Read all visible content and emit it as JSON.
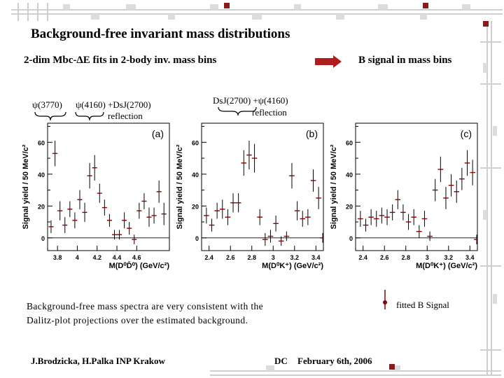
{
  "slide": {
    "title": "Background-free invariant mass distributions",
    "subtitle_left": "2-dim Mbc-ΔE fits in 2-body inv. mass bins",
    "subtitle_right": "B signal in mass bins",
    "annotations": {
      "psi3770": "ψ(3770)",
      "psi4160_dsj": "ψ(4160) +DsJ(2700)",
      "reflection_a": "reflection",
      "dsj_psi": "DsJ(2700) +ψ(4160)",
      "reflection_b": "reflection"
    },
    "caption": "Background-free mass spectra are very consistent with the Dalitz-plot projections over the estimated background.",
    "legend_label": "fitted B Signal",
    "footer_left": "J.Brodzicka, H.Palka INP Krakow",
    "footer_dc": "DC",
    "footer_date": "February 6th, 2006",
    "colors": {
      "arrow": "#b01c1c",
      "points": "#8b0000",
      "decor": "#d0d0d0"
    }
  },
  "chart_data": [
    {
      "type": "scatter",
      "panel_label": "(a)",
      "ylabel": "Signal yield / 50 MeV/c²",
      "xlabel": "M(D⁰D̄⁰) (GeV/c²)",
      "xlim": [
        3.7,
        4.93
      ],
      "ylim": [
        -8,
        72
      ],
      "xticks": [
        "3.8",
        "4",
        "4.2",
        "4.4",
        "4.6"
      ],
      "xtick_values": [
        3.8,
        4.0,
        4.2,
        4.4,
        4.6
      ],
      "yticks": [
        "0",
        "20",
        "40",
        "60"
      ],
      "ytick_values": [
        0,
        20,
        40,
        60
      ],
      "points": [
        {
          "x": 3.735,
          "y": 7,
          "err": 4
        },
        {
          "x": 3.775,
          "y": 53,
          "err": 8
        },
        {
          "x": 3.825,
          "y": 17,
          "err": 6
        },
        {
          "x": 3.875,
          "y": 8,
          "err": 5
        },
        {
          "x": 3.925,
          "y": 18,
          "err": 5
        },
        {
          "x": 3.975,
          "y": 11,
          "err": 5
        },
        {
          "x": 4.025,
          "y": 24,
          "err": 6
        },
        {
          "x": 4.075,
          "y": 16,
          "err": 6
        },
        {
          "x": 4.125,
          "y": 39,
          "err": 8
        },
        {
          "x": 4.175,
          "y": 44,
          "err": 8
        },
        {
          "x": 4.225,
          "y": 28,
          "err": 6
        },
        {
          "x": 4.275,
          "y": 19,
          "err": 5
        },
        {
          "x": 4.325,
          "y": 11,
          "err": 4
        },
        {
          "x": 4.375,
          "y": 2,
          "err": 3
        },
        {
          "x": 4.425,
          "y": 2,
          "err": 3
        },
        {
          "x": 4.475,
          "y": 11,
          "err": 5
        },
        {
          "x": 4.525,
          "y": 6,
          "err": 4
        },
        {
          "x": 4.575,
          "y": -1,
          "err": 3
        },
        {
          "x": 4.625,
          "y": 17,
          "err": 5
        },
        {
          "x": 4.675,
          "y": 23,
          "err": 5
        },
        {
          "x": 4.725,
          "y": 13,
          "err": 6
        },
        {
          "x": 4.775,
          "y": 14,
          "err": 5
        },
        {
          "x": 4.825,
          "y": 29,
          "err": 7
        },
        {
          "x": 4.875,
          "y": 15,
          "err": 7
        }
      ]
    },
    {
      "type": "scatter",
      "panel_label": "(b)",
      "ylabel": "Signal yield / 50 MeV/c²",
      "xlabel": "M(D⁰K⁺) (GeV/c²)",
      "xlim": [
        2.33,
        3.47
      ],
      "ylim": [
        -8,
        72
      ],
      "xticks": [
        "2.4",
        "2.6",
        "2.8",
        "3",
        "3.2",
        "3.4"
      ],
      "xtick_values": [
        2.4,
        2.6,
        2.8,
        3.0,
        3.2,
        3.4
      ],
      "yticks": [
        "0",
        "20",
        "40",
        "60"
      ],
      "ytick_values": [
        0,
        20,
        40,
        60
      ],
      "points": [
        {
          "x": 2.375,
          "y": 14,
          "err": 5
        },
        {
          "x": 2.425,
          "y": 8,
          "err": 4
        },
        {
          "x": 2.475,
          "y": 17,
          "err": 5
        },
        {
          "x": 2.525,
          "y": 18,
          "err": 6
        },
        {
          "x": 2.575,
          "y": 13,
          "err": 5
        },
        {
          "x": 2.625,
          "y": 22,
          "err": 6
        },
        {
          "x": 2.675,
          "y": 22,
          "err": 6
        },
        {
          "x": 2.725,
          "y": 47,
          "err": 8
        },
        {
          "x": 2.775,
          "y": 52,
          "err": 9
        },
        {
          "x": 2.825,
          "y": 50,
          "err": 9
        },
        {
          "x": 2.875,
          "y": 13,
          "err": 5
        },
        {
          "x": 2.925,
          "y": -1,
          "err": 4
        },
        {
          "x": 2.975,
          "y": 1,
          "err": 4
        },
        {
          "x": 3.025,
          "y": 9,
          "err": 5
        },
        {
          "x": 3.075,
          "y": -2,
          "err": 3
        },
        {
          "x": 3.125,
          "y": 1,
          "err": 3
        },
        {
          "x": 3.175,
          "y": 39,
          "err": 8
        },
        {
          "x": 3.225,
          "y": 17,
          "err": 6
        },
        {
          "x": 3.275,
          "y": 12,
          "err": 5
        },
        {
          "x": 3.325,
          "y": 13,
          "err": 5
        },
        {
          "x": 3.375,
          "y": 36,
          "err": 7
        },
        {
          "x": 3.425,
          "y": 25,
          "err": 7
        },
        {
          "x": 3.465,
          "y": 0,
          "err": 3
        }
      ]
    },
    {
      "type": "scatter",
      "panel_label": "(c)",
      "ylabel": "Signal yield / 50 MeV/c²",
      "xlabel": "M(D⁰K⁺) (GeV/c²)",
      "xlim": [
        2.33,
        3.47
      ],
      "ylim": [
        -8,
        72
      ],
      "xticks": [
        "2.4",
        "2.6",
        "2.8",
        "3",
        "3.2",
        "3.4"
      ],
      "xtick_values": [
        2.4,
        2.6,
        2.8,
        3.0,
        3.2,
        3.4
      ],
      "yticks": [
        "0",
        "20",
        "40",
        "60"
      ],
      "ytick_values": [
        0,
        20,
        40,
        60
      ],
      "points": [
        {
          "x": 2.375,
          "y": 12,
          "err": 5
        },
        {
          "x": 2.425,
          "y": 8,
          "err": 4
        },
        {
          "x": 2.475,
          "y": 13,
          "err": 5
        },
        {
          "x": 2.525,
          "y": 12,
          "err": 5
        },
        {
          "x": 2.575,
          "y": 14,
          "err": 5
        },
        {
          "x": 2.625,
          "y": 13,
          "err": 5
        },
        {
          "x": 2.675,
          "y": 16,
          "err": 5
        },
        {
          "x": 2.725,
          "y": 24,
          "err": 6
        },
        {
          "x": 2.775,
          "y": 16,
          "err": 5
        },
        {
          "x": 2.825,
          "y": 10,
          "err": 5
        },
        {
          "x": 2.875,
          "y": 13,
          "err": 5
        },
        {
          "x": 2.925,
          "y": 4,
          "err": 4
        },
        {
          "x": 2.975,
          "y": 12,
          "err": 5
        },
        {
          "x": 3.025,
          "y": 1,
          "err": 3
        },
        {
          "x": 3.075,
          "y": 30,
          "err": 7
        },
        {
          "x": 3.125,
          "y": 43,
          "err": 8
        },
        {
          "x": 3.175,
          "y": 25,
          "err": 7
        },
        {
          "x": 3.225,
          "y": 33,
          "err": 7
        },
        {
          "x": 3.275,
          "y": 29,
          "err": 7
        },
        {
          "x": 3.325,
          "y": 37,
          "err": 7
        },
        {
          "x": 3.375,
          "y": 47,
          "err": 8
        },
        {
          "x": 3.425,
          "y": 41,
          "err": 8
        },
        {
          "x": 3.465,
          "y": -1,
          "err": 3
        }
      ]
    }
  ]
}
